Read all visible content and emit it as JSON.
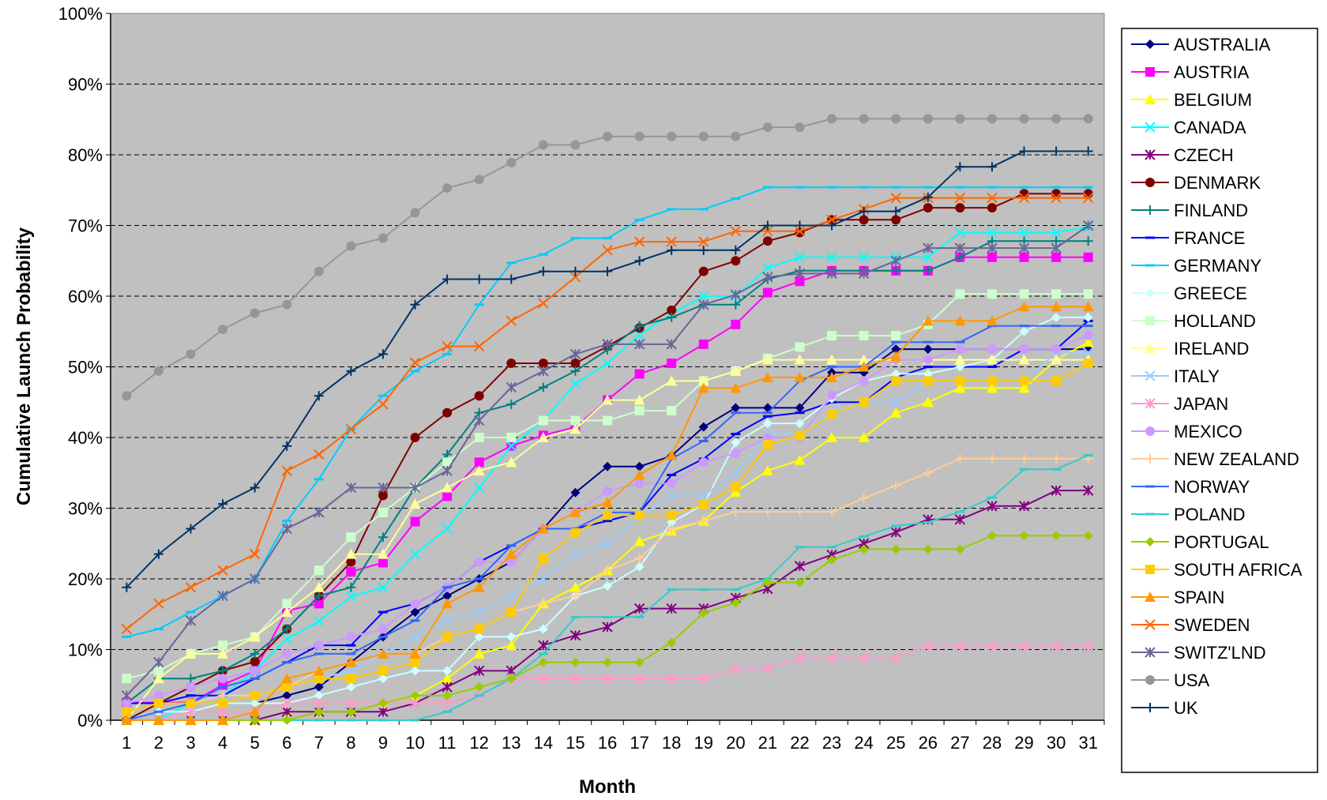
{
  "chart_data": {
    "type": "line",
    "title": "",
    "xlabel": "Month",
    "ylabel": "Cumulative Launch Probability",
    "x": [
      1,
      2,
      3,
      4,
      5,
      6,
      7,
      8,
      9,
      10,
      11,
      12,
      13,
      14,
      15,
      16,
      17,
      18,
      19,
      20,
      21,
      22,
      23,
      24,
      25,
      26,
      27,
      28,
      29,
      30,
      31
    ],
    "x_tick_labels": [
      "1",
      "2",
      "3",
      "4",
      "5",
      "6",
      "7",
      "8",
      "9",
      "10",
      "11",
      "12",
      "13",
      "14",
      "15",
      "16",
      "17",
      "18",
      "19",
      "20",
      "21",
      "22",
      "23",
      "24",
      "25",
      "26",
      "27",
      "28",
      "29",
      "30",
      "31"
    ],
    "ylim": [
      0,
      100
    ],
    "y_ticks": [
      0,
      10,
      20,
      30,
      40,
      50,
      60,
      70,
      80,
      90,
      100
    ],
    "y_tick_labels": [
      "0%",
      "10%",
      "20%",
      "30%",
      "40%",
      "50%",
      "60%",
      "70%",
      "80%",
      "90%",
      "100%"
    ],
    "grid": "horizontal-dashed",
    "plot_background": "#c0c0c0",
    "legend_position": "right",
    "series": [
      {
        "name": "AUSTRALIA",
        "color": "#000080",
        "marker": "diamond",
        "values": [
          2.4,
          2.4,
          2.4,
          2.4,
          2.4,
          3.5,
          4.7,
          8.2,
          11.8,
          15.3,
          17.6,
          20.0,
          22.4,
          27.1,
          32.2,
          35.9,
          35.9,
          37.4,
          41.5,
          44.2,
          44.2,
          44.2,
          49.2,
          49.2,
          52.5,
          52.5,
          52.5,
          52.5,
          52.5,
          52.5,
          52.5
        ]
      },
      {
        "name": "AUSTRIA",
        "color": "#ff00ff",
        "marker": "square",
        "values": [
          2.5,
          2.5,
          2.5,
          5.0,
          7.0,
          15.5,
          16.5,
          21.0,
          22.3,
          28.1,
          31.7,
          36.5,
          38.8,
          40.3,
          41.5,
          45.3,
          49.0,
          50.5,
          53.2,
          56.0,
          60.5,
          62.1,
          63.6,
          63.6,
          63.6,
          63.6,
          65.5,
          65.5,
          65.5,
          65.5,
          65.5
        ]
      },
      {
        "name": "BELGIUM",
        "color": "#ffff00",
        "marker": "triangle",
        "values": [
          0,
          0,
          0,
          0,
          0,
          1.2,
          1.2,
          1.2,
          2.4,
          3.5,
          5.9,
          9.4,
          10.6,
          16.5,
          18.8,
          21.2,
          25.3,
          26.8,
          28.2,
          32.3,
          35.3,
          36.8,
          40.0,
          40.0,
          43.5,
          45.0,
          47.0,
          47.0,
          47.0,
          51.0,
          53.5
        ]
      },
      {
        "name": "CANADA",
        "color": "#00ffff",
        "marker": "x",
        "values": [
          0,
          0,
          2.5,
          3.5,
          7.0,
          11.5,
          14.0,
          17.5,
          18.8,
          23.5,
          27.1,
          32.9,
          38.8,
          42.4,
          47.6,
          50.5,
          54.5,
          57.5,
          60.0,
          60.0,
          64.0,
          65.5,
          65.5,
          65.5,
          65.5,
          65.5,
          69.0,
          69.0,
          69.0,
          69.0,
          69.8
        ]
      },
      {
        "name": "CZECH",
        "color": "#800080",
        "marker": "asterisk",
        "values": [
          0,
          0,
          0,
          0,
          0,
          1.2,
          1.2,
          1.2,
          1.2,
          2.4,
          4.7,
          7.0,
          7.0,
          10.6,
          12.0,
          13.2,
          15.8,
          15.8,
          15.8,
          17.3,
          18.6,
          21.8,
          23.4,
          25.0,
          26.6,
          28.4,
          28.4,
          30.3,
          30.3,
          32.5,
          32.5
        ]
      },
      {
        "name": "DENMARK",
        "color": "#800000",
        "marker": "circle",
        "values": [
          0,
          2.4,
          4.7,
          7.0,
          8.3,
          12.9,
          17.6,
          22.4,
          31.8,
          40.0,
          43.5,
          45.9,
          50.5,
          50.5,
          50.5,
          52.9,
          55.5,
          58.0,
          63.5,
          65.0,
          67.8,
          69.0,
          70.8,
          70.8,
          70.8,
          72.5,
          72.5,
          72.5,
          74.5,
          74.5,
          74.5
        ]
      },
      {
        "name": "FINLAND",
        "color": "#008080",
        "marker": "plus",
        "values": [
          2.4,
          5.9,
          5.9,
          7.0,
          9.4,
          12.9,
          17.6,
          18.8,
          25.9,
          32.9,
          37.6,
          43.5,
          44.7,
          47.1,
          49.4,
          52.4,
          55.8,
          57.0,
          58.8,
          58.8,
          62.4,
          63.6,
          63.6,
          63.6,
          63.6,
          63.6,
          65.5,
          67.8,
          67.8,
          67.8,
          67.8
        ]
      },
      {
        "name": "FRANCE",
        "color": "#0000ff",
        "marker": "dash",
        "values": [
          2.4,
          2.4,
          3.5,
          3.5,
          5.9,
          8.2,
          10.6,
          10.6,
          15.3,
          16.5,
          18.8,
          22.4,
          24.7,
          27.1,
          27.1,
          28.2,
          29.4,
          34.7,
          37.0,
          40.5,
          43.0,
          43.5,
          45.0,
          45.0,
          48.5,
          50.0,
          50.0,
          50.0,
          52.5,
          52.5,
          56.5
        ]
      },
      {
        "name": "GERMANY",
        "color": "#00ccff",
        "marker": "dash",
        "values": [
          11.8,
          12.9,
          15.3,
          17.6,
          20.0,
          28.2,
          34.1,
          41.2,
          45.9,
          49.4,
          51.8,
          58.8,
          64.7,
          65.9,
          68.2,
          68.2,
          70.8,
          72.3,
          72.3,
          73.8,
          75.4,
          75.4,
          75.4,
          75.4,
          75.4,
          75.4,
          75.4,
          75.4,
          75.4,
          75.4,
          75.4
        ]
      },
      {
        "name": "GREECE",
        "color": "#ccffff",
        "marker": "diamond",
        "values": [
          0,
          1.2,
          1.2,
          2.4,
          2.4,
          2.4,
          3.5,
          4.7,
          5.9,
          7.0,
          7.0,
          11.8,
          11.8,
          12.9,
          17.6,
          19.0,
          21.7,
          28.0,
          30.5,
          39.3,
          42.0,
          42.0,
          45.5,
          48.0,
          49.0,
          49.0,
          50.0,
          51.0,
          55.0,
          57.0,
          57.0
        ]
      },
      {
        "name": "HOLLAND",
        "color": "#ccffcc",
        "marker": "square",
        "values": [
          5.9,
          7.0,
          9.4,
          10.6,
          11.8,
          16.5,
          21.2,
          25.9,
          29.4,
          32.9,
          36.5,
          40.0,
          40.0,
          42.4,
          42.4,
          42.4,
          43.8,
          43.8,
          48.0,
          49.4,
          51.2,
          52.8,
          54.4,
          54.4,
          54.4,
          56.0,
          60.3,
          60.3,
          60.3,
          60.3,
          60.3
        ]
      },
      {
        "name": "IRELAND",
        "color": "#ffff99",
        "marker": "triangle",
        "values": [
          0,
          5.9,
          9.4,
          9.4,
          11.8,
          15.3,
          18.8,
          23.5,
          23.5,
          30.6,
          32.9,
          35.3,
          36.5,
          40.0,
          41.2,
          45.3,
          45.3,
          48.0,
          48.0,
          49.4,
          51.0,
          51.0,
          51.0,
          51.0,
          51.0,
          51.0,
          51.0,
          51.0,
          51.0,
          51.0,
          51.0
        ]
      },
      {
        "name": "ITALY",
        "color": "#99ccff",
        "marker": "x",
        "values": [
          1.2,
          2.4,
          2.4,
          3.5,
          3.5,
          4.7,
          5.9,
          7.0,
          9.4,
          11.8,
          14.1,
          15.3,
          17.6,
          20.0,
          23.5,
          25.0,
          28.8,
          31.8,
          31.8,
          35.0,
          40.5,
          40.5,
          43.5,
          45.0,
          45.0,
          48.0,
          48.0,
          48.0,
          48.0,
          52.0,
          52.0
        ]
      },
      {
        "name": "JAPAN",
        "color": "#ff99cc",
        "marker": "asterisk",
        "values": [
          0,
          0,
          1.2,
          1.2,
          1.2,
          2.4,
          2.4,
          2.4,
          2.4,
          2.4,
          2.4,
          3.5,
          5.9,
          5.9,
          5.9,
          5.9,
          5.9,
          5.9,
          5.9,
          7.3,
          7.3,
          8.8,
          8.8,
          8.8,
          8.8,
          10.5,
          10.5,
          10.5,
          10.5,
          10.5,
          10.5
        ]
      },
      {
        "name": "MEXICO",
        "color": "#cc99ff",
        "marker": "circle",
        "values": [
          2.4,
          3.5,
          4.7,
          5.9,
          7.0,
          9.4,
          10.6,
          11.8,
          12.9,
          16.5,
          18.8,
          22.4,
          22.4,
          27.1,
          29.4,
          32.4,
          33.5,
          33.5,
          36.5,
          37.8,
          40.0,
          40.0,
          46.0,
          48.0,
          51.0,
          51.0,
          52.5,
          52.5,
          52.5,
          52.5,
          54.5
        ]
      },
      {
        "name": "NEW ZEALAND",
        "color": "#ffcc99",
        "marker": "plus",
        "values": [
          1.2,
          2.4,
          2.4,
          3.5,
          3.5,
          4.7,
          7.0,
          8.2,
          9.4,
          9.4,
          11.8,
          12.9,
          15.3,
          16.5,
          17.6,
          21.2,
          22.9,
          27.1,
          28.2,
          29.5,
          29.5,
          29.5,
          29.5,
          31.4,
          33.2,
          35.0,
          37.0,
          37.0,
          37.0,
          37.0,
          37.0
        ]
      },
      {
        "name": "NORWAY",
        "color": "#3366ff",
        "marker": "dash",
        "values": [
          0,
          1.2,
          2.4,
          4.7,
          5.9,
          8.2,
          9.4,
          9.4,
          11.8,
          14.1,
          18.8,
          20.0,
          24.7,
          27.1,
          27.1,
          29.4,
          29.4,
          37.0,
          39.5,
          43.5,
          43.5,
          48.0,
          50.0,
          50.0,
          53.5,
          53.5,
          53.5,
          55.8,
          55.8,
          55.8,
          55.8
        ]
      },
      {
        "name": "POLAND",
        "color": "#33cccc",
        "marker": "dash",
        "values": [
          0,
          0,
          0,
          0,
          0,
          0,
          0,
          0,
          0,
          0,
          1.2,
          3.5,
          5.9,
          9.4,
          14.6,
          14.6,
          14.6,
          18.5,
          18.5,
          18.5,
          20.0,
          24.5,
          24.5,
          26.0,
          27.5,
          28.0,
          29.5,
          31.5,
          35.5,
          35.5,
          37.5
        ]
      },
      {
        "name": "PORTUGAL",
        "color": "#99cc00",
        "marker": "diamond",
        "values": [
          0,
          0,
          0,
          0,
          0,
          0,
          1.2,
          1.2,
          2.4,
          3.5,
          3.5,
          4.7,
          5.9,
          8.2,
          8.2,
          8.2,
          8.2,
          11.0,
          15.2,
          16.6,
          19.5,
          19.5,
          22.7,
          24.2,
          24.2,
          24.2,
          24.2,
          26.1,
          26.1,
          26.1,
          26.1
        ]
      },
      {
        "name": "SOUTH AFRICA",
        "color": "#ffcc00",
        "marker": "square",
        "values": [
          1.2,
          2.4,
          2.4,
          2.4,
          3.5,
          4.7,
          5.9,
          5.9,
          7.0,
          8.2,
          11.8,
          12.9,
          15.3,
          22.9,
          26.5,
          29.0,
          29.0,
          29.0,
          30.5,
          33.0,
          39.0,
          40.3,
          43.3,
          45.0,
          48.0,
          48.0,
          48.0,
          48.0,
          48.0,
          48.0,
          50.5
        ]
      },
      {
        "name": "SPAIN",
        "color": "#ff9900",
        "marker": "triangle",
        "values": [
          0,
          0,
          0,
          0,
          1.2,
          5.9,
          7.0,
          8.2,
          9.4,
          9.4,
          16.5,
          18.8,
          23.5,
          27.1,
          29.4,
          30.8,
          34.7,
          37.5,
          47.0,
          47.0,
          48.5,
          48.5,
          48.5,
          50.0,
          51.5,
          56.5,
          56.5,
          56.5,
          58.5,
          58.5,
          58.5
        ]
      },
      {
        "name": "SWEDEN",
        "color": "#ff6600",
        "marker": "x",
        "values": [
          12.9,
          16.5,
          18.8,
          21.2,
          23.5,
          35.3,
          37.6,
          41.2,
          44.7,
          50.6,
          52.9,
          52.9,
          56.5,
          59.0,
          62.7,
          66.5,
          67.7,
          67.7,
          67.7,
          69.2,
          69.2,
          69.2,
          70.8,
          72.3,
          73.9,
          73.9,
          73.9,
          73.9,
          73.9,
          73.9,
          73.9
        ]
      },
      {
        "name": "SWITZ'LND",
        "color": "#666699",
        "marker": "asterisk",
        "values": [
          3.5,
          8.2,
          14.1,
          17.6,
          20.0,
          27.1,
          29.4,
          32.9,
          32.9,
          32.9,
          35.3,
          42.4,
          47.1,
          49.4,
          51.8,
          53.2,
          53.2,
          53.2,
          58.8,
          60.2,
          62.7,
          63.2,
          63.2,
          63.2,
          65.0,
          66.8,
          66.8,
          66.8,
          66.8,
          66.8,
          70.0
        ]
      },
      {
        "name": "USA",
        "color": "#969696",
        "marker": "circle",
        "values": [
          45.9,
          49.4,
          51.8,
          55.3,
          57.6,
          58.8,
          63.5,
          67.1,
          68.2,
          71.8,
          75.3,
          76.5,
          78.9,
          81.4,
          81.4,
          82.6,
          82.6,
          82.6,
          82.6,
          82.6,
          83.9,
          83.9,
          85.1,
          85.1,
          85.1,
          85.1,
          85.1,
          85.1,
          85.1,
          85.1,
          85.1
        ]
      },
      {
        "name": "UK",
        "color": "#003366",
        "marker": "plus",
        "values": [
          18.8,
          23.5,
          27.1,
          30.6,
          32.9,
          38.8,
          45.9,
          49.4,
          51.8,
          58.8,
          62.4,
          62.4,
          62.4,
          63.5,
          63.5,
          63.5,
          65.0,
          66.5,
          66.5,
          66.5,
          70.0,
          70.0,
          70.0,
          72.0,
          72.0,
          74.0,
          78.3,
          78.3,
          80.5,
          80.5,
          80.5
        ]
      }
    ]
  }
}
